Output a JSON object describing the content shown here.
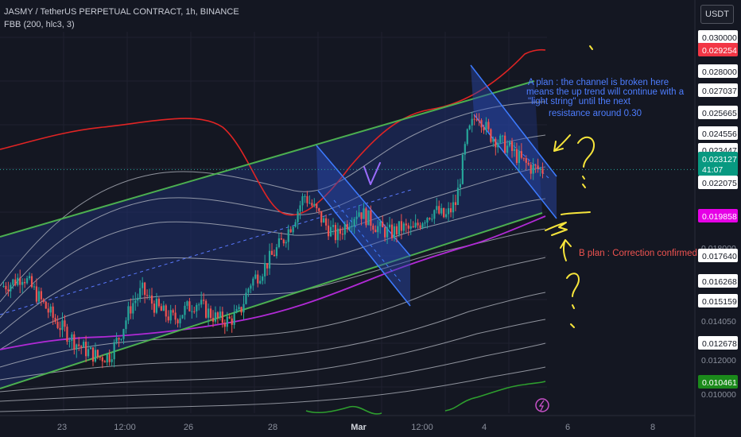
{
  "header": {
    "title": "JASMY / TetherUS PERPETUAL CONTRACT, 1h, BINANCE",
    "indicator": "FBB (200, hlc3, 3)",
    "currency_button": "USDT"
  },
  "price_axis": {
    "ticks": [
      "0.030000",
      "0.028000",
      "0.027037",
      "0.025665",
      "0.024556",
      "0.023447",
      "0.022075",
      "0.018000",
      "0.017640",
      "0.016268",
      "0.015159",
      "0.014050",
      "0.012678",
      "0.012000",
      "0.010000"
    ],
    "badges": [
      {
        "value": "0.029254",
        "bg": "#f23645",
        "fg": "#ffffff"
      },
      {
        "value": "0.023127",
        "sub": "41:07",
        "bg": "#089981",
        "fg": "#ffffff"
      },
      {
        "value": "0.019858",
        "bg": "#e600e6",
        "fg": "#ffffff"
      },
      {
        "value": "0.010461",
        "bg": "#1b8a1b",
        "fg": "#ffffff"
      }
    ]
  },
  "time_axis": {
    "labels": [
      "23",
      "12:00",
      "26",
      "28",
      "Mar",
      "12:00",
      "4",
      "6",
      "8"
    ]
  },
  "annotations": {
    "plan_a": [
      "A plan : the channel is broken here",
      "means the up trend will continue with a",
      "\"light string\" until the next",
      "resistance around 0.30"
    ],
    "plan_b": "B plan : Correction confirmed"
  },
  "colors": {
    "background": "#141722",
    "channel_line": "#4caf50",
    "channel_fill": "#1e2f6e",
    "upper_band": "#e02424",
    "basis_band": "#b12ad6",
    "lower_band": "#2e9e2e",
    "fib_bands": "#b8bcc6",
    "candle_up": "#26a69a",
    "candle_down": "#ef5350",
    "sub_channel": "#3d7bff",
    "note_a": "#4d7dff",
    "note_b": "#ef5350",
    "drawing": "#f7e53b"
  },
  "chart_data": {
    "type": "candlestick",
    "symbol": "JASMY / TetherUS PERPETUAL CONTRACT",
    "timeframe": "1h",
    "exchange": "BINANCE",
    "last_price": 0.023127,
    "countdown": "41:07",
    "y_axis_ticks": [
      0.03,
      0.028,
      0.027037,
      0.025665,
      0.024556,
      0.023447,
      0.022075,
      0.018,
      0.01764,
      0.016268,
      0.015159,
      0.01405,
      0.012678,
      0.012,
      0.01
    ],
    "indicator_values": {
      "upper_band": 0.029254,
      "basis": 0.019858,
      "lower_band": 0.010461
    },
    "x_labels": [
      "23",
      "12:00",
      "26",
      "28",
      "Mar",
      "12:00",
      "4",
      "6",
      "8"
    ],
    "price_path": [
      [
        "23",
        0.017
      ],
      [
        "23",
        0.0172
      ],
      [
        "23",
        0.0176
      ],
      [
        "23",
        0.0168
      ],
      [
        "23",
        0.016
      ],
      [
        "23",
        0.0152
      ],
      [
        "23",
        0.0146
      ],
      [
        "23",
        0.014
      ],
      [
        "12:00",
        0.0136
      ],
      [
        "12:00",
        0.0133
      ],
      [
        "12:00",
        0.0134
      ],
      [
        "12:00",
        0.0145
      ],
      [
        "12:00",
        0.016
      ],
      [
        "12:00",
        0.0168
      ],
      [
        "26",
        0.0161
      ],
      [
        "26",
        0.0156
      ],
      [
        "26",
        0.0153
      ],
      [
        "26",
        0.0158
      ],
      [
        "26",
        0.0162
      ],
      [
        "26",
        0.0157
      ],
      [
        "26",
        0.0153
      ],
      [
        "26",
        0.0152
      ],
      [
        "28",
        0.0156
      ],
      [
        "28",
        0.0172
      ],
      [
        "28",
        0.0178
      ],
      [
        "28",
        0.0186
      ],
      [
        "28",
        0.0194
      ],
      [
        "28",
        0.0205
      ],
      [
        "28",
        0.0218
      ],
      [
        "Mar",
        0.021
      ],
      [
        "Mar",
        0.0202
      ],
      [
        "Mar",
        0.0196
      ],
      [
        "Mar",
        0.0204
      ],
      [
        "Mar",
        0.021
      ],
      [
        "Mar",
        0.0205
      ],
      [
        "Mar",
        0.02
      ],
      [
        "12:00",
        0.0198
      ],
      [
        "12:00",
        0.0201
      ],
      [
        "12:00",
        0.0199
      ],
      [
        "12:00",
        0.0206
      ],
      [
        "12:00",
        0.021
      ],
      [
        "12:00",
        0.0206
      ],
      [
        "4",
        0.0214
      ],
      [
        "4",
        0.0248
      ],
      [
        "4",
        0.0262
      ],
      [
        "4",
        0.025
      ],
      [
        "4",
        0.0246
      ],
      [
        "4",
        0.0242
      ],
      [
        "4",
        0.0236
      ],
      [
        "4",
        0.0232
      ],
      [
        "4",
        0.0231
      ]
    ]
  }
}
